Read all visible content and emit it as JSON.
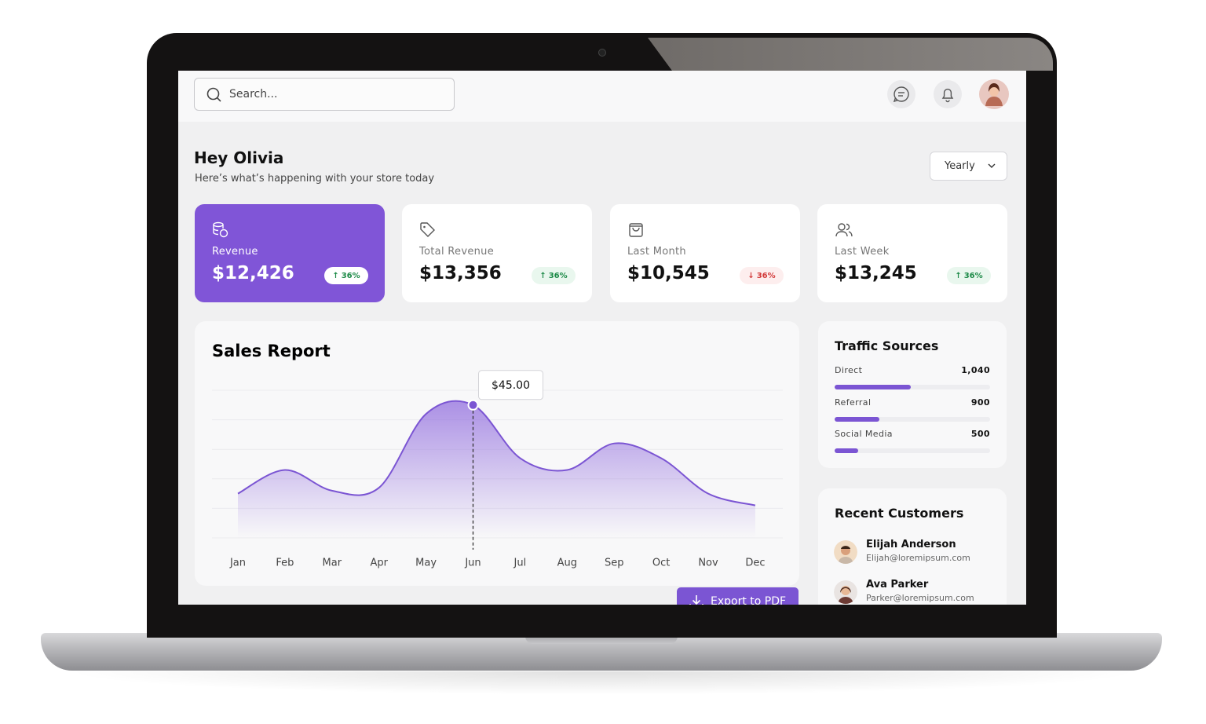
{
  "search_placeholder": "Search...",
  "greeting": {
    "title": "Hey Olivia",
    "subtitle": "Here’s what’s happening with your store today"
  },
  "period": "Yearly",
  "stats": [
    {
      "label": "Revenue",
      "value": "$12,426",
      "change": "36%",
      "direction": "up"
    },
    {
      "label": "Total Revenue",
      "value": "$13,356",
      "change": "36%",
      "direction": "up"
    },
    {
      "label": "Last Month",
      "value": "$10,545",
      "change": "36%",
      "direction": "down"
    },
    {
      "label": "Last Week",
      "value": "$13,245",
      "change": "36%",
      "direction": "up"
    }
  ],
  "export_button": "Export to PDF",
  "chart_data": {
    "type": "area",
    "title": "Sales Report",
    "categories": [
      "Jan",
      "Feb",
      "Mar",
      "Apr",
      "May",
      "Jun",
      "Jul",
      "Aug",
      "Sep",
      "Oct",
      "Nov",
      "Dec"
    ],
    "values": [
      15,
      23,
      16,
      17,
      42,
      45,
      27,
      23,
      32,
      27,
      15,
      11
    ],
    "value_labels": [
      null,
      null,
      null,
      null,
      null,
      "$45.00",
      null,
      null,
      null,
      null,
      null,
      null
    ],
    "ylim": [
      0,
      50
    ],
    "yticks": [
      0,
      10,
      20,
      30,
      40,
      50
    ],
    "grid": true,
    "color": "#7b55d3"
  },
  "traffic": {
    "title": "Traffic Sources",
    "rows": [
      {
        "name": "Direct",
        "value": "1,040"
      },
      {
        "name": "Referral",
        "value": "900"
      },
      {
        "name": "Social Media",
        "value": "500"
      }
    ]
  },
  "customers": {
    "title": "Recent Customers",
    "rows": [
      {
        "name": "Elijah Anderson",
        "email": "Elijah@loremipsum.com"
      },
      {
        "name": "Ava Parker",
        "email": "Parker@loremipsum.com"
      }
    ]
  }
}
